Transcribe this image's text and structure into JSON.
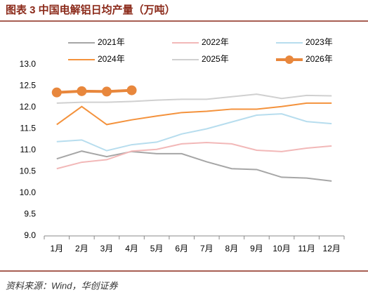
{
  "chart_data": {
    "type": "line",
    "title": "图表 3   中国电解铝日均产量（万吨）",
    "source": "资料来源：Wind，华创证券",
    "categories": [
      "1月",
      "2月",
      "3月",
      "4月",
      "5月",
      "6月",
      "7月",
      "8月",
      "9月",
      "10月",
      "11月",
      "12月"
    ],
    "ylim": [
      9.0,
      13.0
    ],
    "yticks": [
      {
        "value": 9.0,
        "label": "9.0"
      },
      9.5,
      {
        "value": 10.0,
        "label": "10.0"
      },
      10.5,
      {
        "value": 11.0,
        "label": "11.0"
      },
      11.5,
      {
        "value": 12.0,
        "label": "12.0"
      },
      12.5,
      {
        "value": 13.0,
        "label": "13.0"
      }
    ],
    "grid": false,
    "series": [
      {
        "name": "2021年",
        "color": "#a6a6a6",
        "values": [
          10.8,
          10.98,
          10.85,
          10.97,
          10.92,
          10.92,
          10.73,
          10.57,
          10.55,
          10.37,
          10.35,
          10.28
        ]
      },
      {
        "name": "2022年",
        "color": "#f2b8b8",
        "values": [
          10.57,
          10.72,
          10.78,
          10.98,
          11.02,
          11.15,
          11.18,
          11.15,
          11.0,
          10.97,
          11.05,
          11.1
        ]
      },
      {
        "name": "2023年",
        "color": "#b7ddee",
        "values": [
          11.2,
          11.24,
          10.99,
          11.13,
          11.19,
          11.38,
          11.5,
          11.66,
          11.82,
          11.85,
          11.67,
          11.62
        ]
      },
      {
        "name": "2024年",
        "color": "#f4923c",
        "values": [
          11.6,
          12.02,
          11.6,
          11.71,
          11.8,
          11.88,
          11.91,
          11.96,
          11.96,
          12.02,
          12.1,
          12.1
        ]
      },
      {
        "name": "2025年",
        "color": "#d0d0d0",
        "values": [
          12.1,
          12.12,
          12.12,
          12.14,
          12.17,
          12.19,
          12.19,
          12.25,
          12.31,
          12.21,
          12.28,
          12.27
        ]
      },
      {
        "name": "2026年",
        "color": "#e8873c",
        "markers": true,
        "values": [
          12.35,
          12.38,
          12.37,
          12.4,
          null,
          null,
          null,
          null,
          null,
          null,
          null,
          null
        ]
      }
    ]
  }
}
